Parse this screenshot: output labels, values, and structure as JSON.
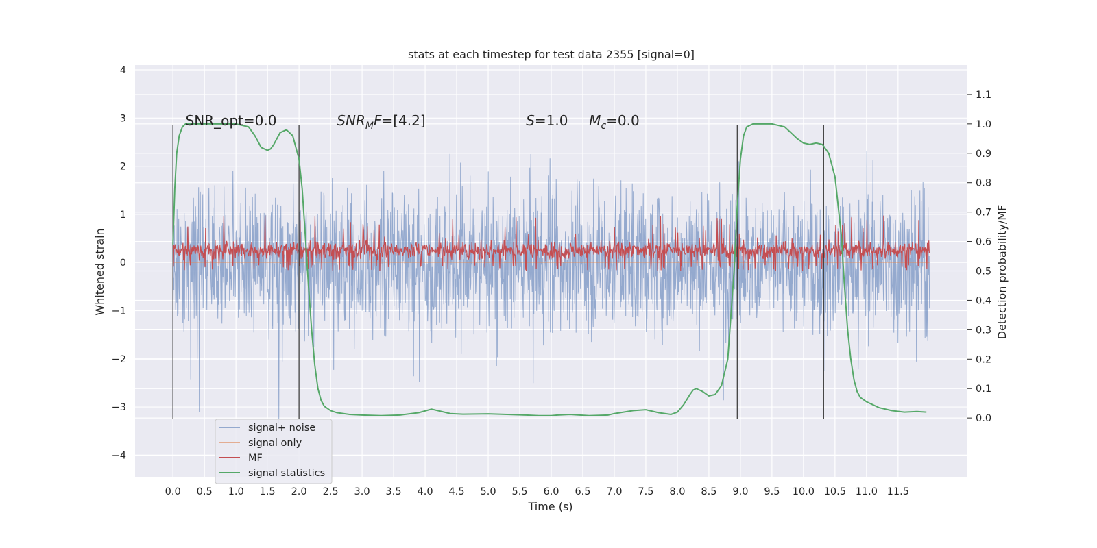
{
  "chart_data": {
    "type": "line",
    "title": "stats at each timestep for test data 2355 [signal=0]",
    "xlabel": "Time (s)",
    "ylabel": "Whitened strain",
    "ylabel_right": "Detection probability/MF",
    "xlim": [
      -0.6,
      12.6
    ],
    "ylim": [
      -4.45,
      4.1
    ],
    "ylim_right": [
      -0.2,
      1.2
    ],
    "xticks": [
      0.0,
      0.5,
      1.0,
      1.5,
      2.0,
      2.5,
      3.0,
      3.5,
      4.0,
      4.5,
      5.0,
      5.5,
      6.0,
      6.5,
      7.0,
      7.5,
      8.0,
      8.5,
      9.0,
      9.5,
      10.0,
      10.5,
      11.0,
      11.5
    ],
    "xtick_labels": [
      "0.0",
      "0.5",
      "1.0",
      "1.5",
      "2.0",
      "2.5",
      "3.0",
      "3.5",
      "4.0",
      "4.5",
      "5.0",
      "5.5",
      "6.0",
      "6.5",
      "7.0",
      "7.5",
      "8.0",
      "8.5",
      "9.0",
      "9.5",
      "10.0",
      "10.5",
      "11.0",
      "11.5"
    ],
    "yticks": [
      -4,
      -3,
      -2,
      -1,
      0,
      1,
      2,
      3,
      4
    ],
    "ytick_labels": [
      "−4",
      "−3",
      "−2",
      "−1",
      "0",
      "1",
      "2",
      "3",
      "4"
    ],
    "yticks_right": [
      0.0,
      0.1,
      0.2,
      0.3,
      0.4,
      0.5,
      0.6,
      0.7,
      0.8,
      0.9,
      1.0,
      1.1
    ],
    "ytick_labels_right": [
      "0.0",
      "0.1",
      "0.2",
      "0.3",
      "0.4",
      "0.5",
      "0.6",
      "0.7",
      "0.8",
      "0.9",
      "1.0",
      "1.1"
    ],
    "grid": true,
    "legend_position": "lower-left",
    "series": [
      {
        "name": "signal+ noise",
        "color": "#4c72b0",
        "opacity": 0.55,
        "axis": "left",
        "kind": "noise",
        "x_range": [
          0.0,
          12.0
        ],
        "center": 0.0,
        "typical_amplitude": 1.8,
        "max_amplitude": 4.0
      },
      {
        "name": "signal only",
        "color": "#dd8452",
        "opacity": 0.6,
        "axis": "left",
        "values_description": "zero"
      },
      {
        "name": "MF",
        "color": "#c44e52",
        "axis": "right",
        "kind": "band",
        "x_range": [
          0.0,
          12.0
        ],
        "center": 0.57,
        "band_low": 0.52,
        "band_high": 0.62,
        "max": 0.69
      },
      {
        "name": "signal statistics",
        "color": "#55a868",
        "axis": "right",
        "x": [
          0.0,
          0.03,
          0.06,
          0.1,
          0.15,
          0.2,
          0.3,
          0.4,
          0.6,
          0.8,
          1.0,
          1.2,
          1.3,
          1.4,
          1.5,
          1.55,
          1.6,
          1.7,
          1.8,
          1.9,
          2.0,
          2.05,
          2.1,
          2.15,
          2.2,
          2.25,
          2.3,
          2.35,
          2.4,
          2.5,
          2.6,
          2.8,
          3.0,
          3.3,
          3.6,
          3.9,
          4.1,
          4.2,
          4.4,
          4.6,
          5.0,
          5.3,
          5.6,
          5.8,
          6.0,
          6.1,
          6.3,
          6.6,
          6.9,
          7.0,
          7.3,
          7.5,
          7.7,
          7.9,
          8.0,
          8.1,
          8.2,
          8.25,
          8.3,
          8.4,
          8.5,
          8.6,
          8.7,
          8.8,
          8.9,
          8.95,
          9.0,
          9.05,
          9.1,
          9.2,
          9.3,
          9.5,
          9.7,
          9.8,
          9.9,
          10.0,
          10.1,
          10.2,
          10.3,
          10.4,
          10.5,
          10.6,
          10.65,
          10.7,
          10.75,
          10.8,
          10.85,
          10.9,
          11.0,
          11.1,
          11.2,
          11.4,
          11.6,
          11.8,
          11.95
        ],
        "y": [
          0.59,
          0.78,
          0.9,
          0.96,
          0.99,
          1.0,
          1.0,
          1.0,
          1.0,
          1.0,
          1.0,
          0.99,
          0.96,
          0.92,
          0.91,
          0.915,
          0.93,
          0.97,
          0.98,
          0.96,
          0.88,
          0.78,
          0.62,
          0.45,
          0.3,
          0.18,
          0.1,
          0.06,
          0.04,
          0.025,
          0.018,
          0.012,
          0.01,
          0.008,
          0.01,
          0.018,
          0.03,
          0.025,
          0.015,
          0.013,
          0.014,
          0.012,
          0.01,
          0.008,
          0.008,
          0.01,
          0.012,
          0.008,
          0.01,
          0.015,
          0.025,
          0.028,
          0.018,
          0.012,
          0.02,
          0.045,
          0.08,
          0.095,
          0.1,
          0.09,
          0.075,
          0.08,
          0.11,
          0.2,
          0.5,
          0.72,
          0.88,
          0.96,
          0.99,
          1.0,
          1.0,
          1.0,
          0.99,
          0.97,
          0.95,
          0.935,
          0.93,
          0.935,
          0.93,
          0.9,
          0.82,
          0.62,
          0.45,
          0.3,
          0.2,
          0.13,
          0.09,
          0.07,
          0.055,
          0.045,
          0.035,
          0.025,
          0.02,
          0.022,
          0.02
        ]
      }
    ],
    "vlines": {
      "color": "#404040",
      "x": [
        0.0,
        2.0,
        8.95,
        10.32
      ]
    },
    "annotations": [
      {
        "text": "SNR_opt=0.0",
        "x": 0.2,
        "y": 2.85
      },
      {
        "base": "SNR",
        "sub": "M",
        "tail": "F=[4.2]",
        "x": 2.6,
        "y": 2.85
      },
      {
        "base": "S",
        "sub": "",
        "tail": "=1.0",
        "x": 5.6,
        "y": 2.85
      },
      {
        "base": "M",
        "sub": "c",
        "tail": "=0.0",
        "x": 6.6,
        "y": 2.85
      }
    ]
  }
}
